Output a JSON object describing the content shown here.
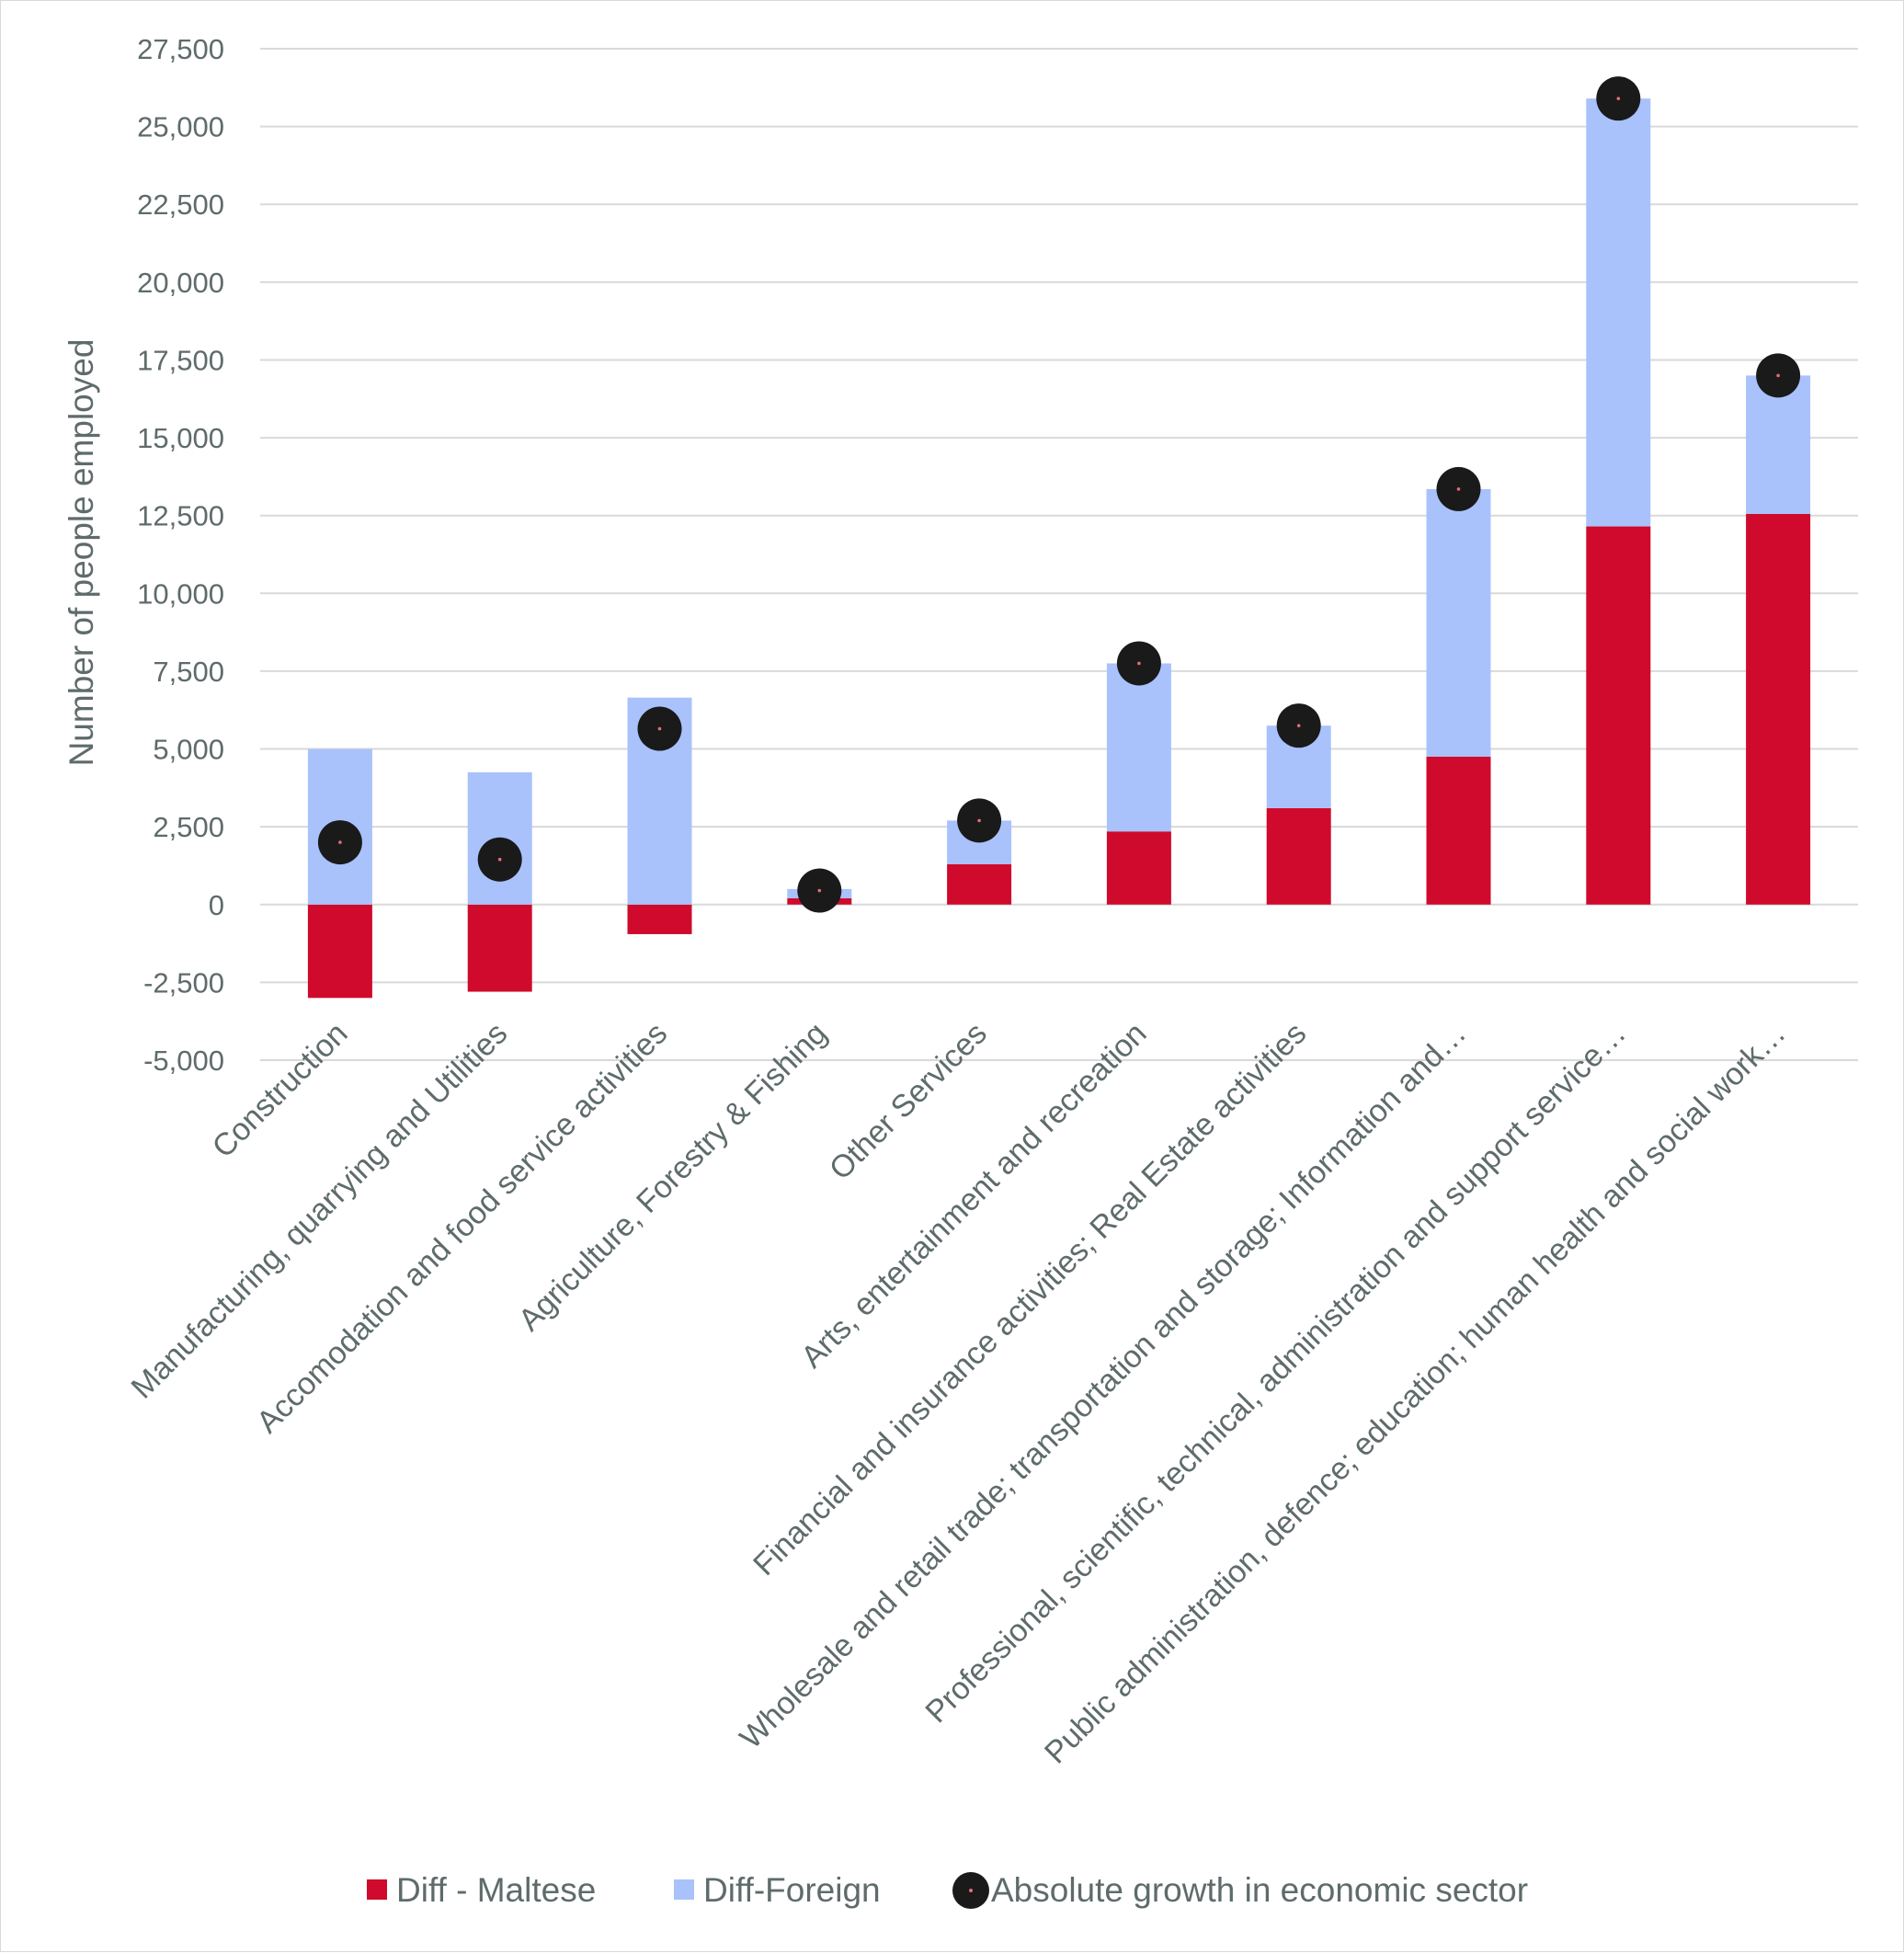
{
  "chart_data": {
    "type": "bar",
    "stacked": true,
    "ylabel": "Number of people employed",
    "ylim": [
      -5000,
      27500
    ],
    "yticks": [
      -5000,
      -2500,
      0,
      2500,
      5000,
      7500,
      10000,
      12500,
      15000,
      17500,
      20000,
      22500,
      25000,
      27500
    ],
    "ytick_labels": [
      "-5,000",
      "-2,500",
      "0",
      "2,500",
      "5,000",
      "7,500",
      "10,000",
      "12,500",
      "15,000",
      "17,500",
      "20,000",
      "22,500",
      "25,000",
      "27,500"
    ],
    "grid": true,
    "legend_position": "bottom",
    "categories": [
      "Construction",
      "Manufacturing, quarrying and Utilities",
      "Accomodation and food service activities",
      "Agriculture, Forestry & Fishing",
      "Other Services",
      "Arts, entertainment and recreation",
      "Financial and insurance activities; Real Estate activities",
      "Wholesale and retail trade; transportation and storage; Information and…",
      "Professional, scientific, technical, administration and support service…",
      "Public administration, defence; education; human health and social work…"
    ],
    "series": [
      {
        "name": "Diff - Maltese",
        "kind": "bar",
        "color": "#cf0a2c",
        "values": [
          -3000,
          -2800,
          -950,
          200,
          1300,
          2350,
          3100,
          4750,
          12150,
          12550
        ]
      },
      {
        "name": "Diff-Foreign",
        "kind": "bar",
        "color": "#a9c2fc",
        "values": [
          5000,
          4250,
          6650,
          300,
          1400,
          5400,
          2650,
          8600,
          13750,
          4450
        ]
      },
      {
        "name": "Absolute growth in economic sector",
        "kind": "marker",
        "color": "#1a1a1a",
        "values": [
          2000,
          1450,
          5650,
          450,
          2700,
          7750,
          5750,
          13350,
          25900,
          17000
        ]
      }
    ]
  }
}
